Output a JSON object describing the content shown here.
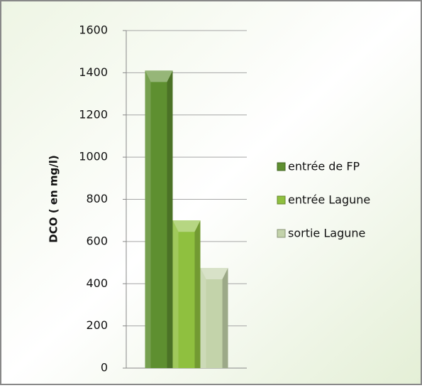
{
  "chart_data": {
    "type": "bar",
    "y_label": "DCO ( en mg/l)",
    "categories": [
      null
    ],
    "series": [
      {
        "name": "entrée de FP",
        "color": "#5e8f30",
        "values": [
          1410
        ]
      },
      {
        "name": "entrée Lagune",
        "color": "#8fc03f",
        "values": [
          700
        ]
      },
      {
        "name": "sortie Lagune",
        "color": "#c3d3aa",
        "values": [
          475
        ]
      }
    ],
    "ylim": [
      0,
      1600
    ],
    "yticks": [
      0,
      200,
      400,
      600,
      800,
      1000,
      1200,
      1400,
      1600
    ],
    "grid": true,
    "legend": "right"
  }
}
